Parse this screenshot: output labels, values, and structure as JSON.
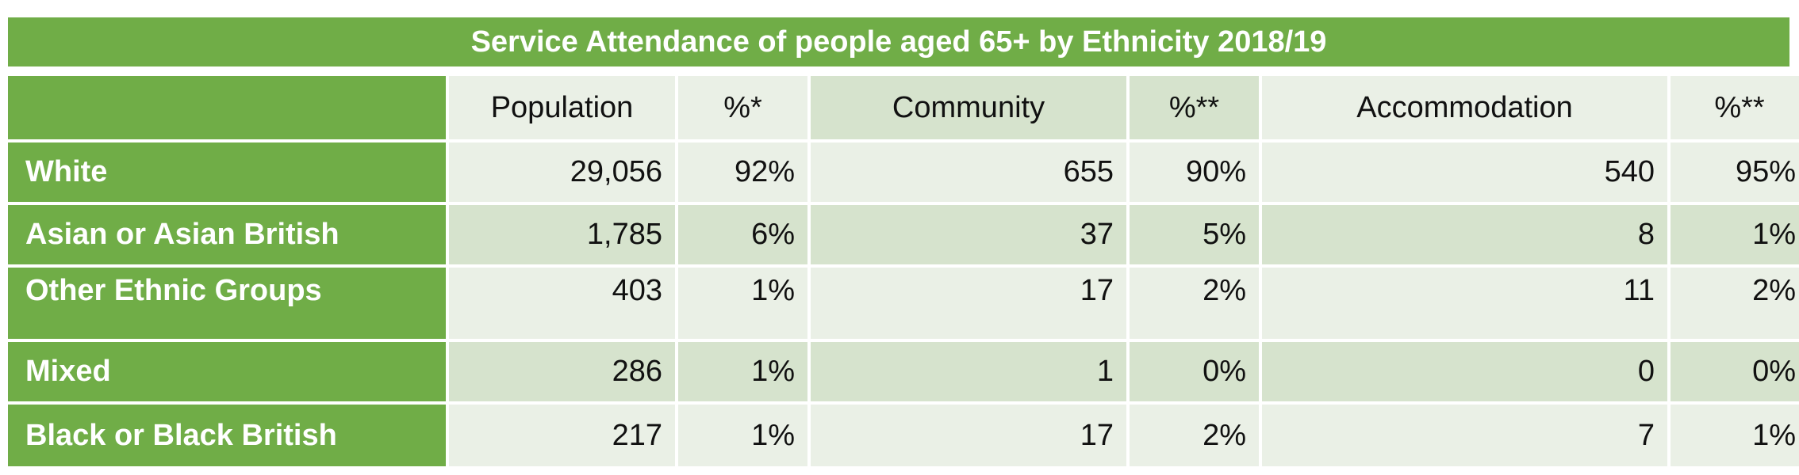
{
  "chart_data": {
    "type": "table",
    "title": "Service Attendance of people aged 65+ by Ethnicity 2018/19",
    "columns": [
      "Population",
      "%*",
      "Community",
      "%**",
      "Accommodation",
      "%**"
    ],
    "rows": [
      {
        "label": "White",
        "values": [
          "29,056",
          "92%",
          "655",
          "90%",
          "540",
          "95%"
        ]
      },
      {
        "label": "Asian or Asian British",
        "values": [
          "1,785",
          "6%",
          "37",
          "5%",
          "8",
          "1%"
        ]
      },
      {
        "label": "Other Ethnic Groups",
        "values": [
          "403",
          "1%",
          "17",
          "2%",
          "11",
          "2%"
        ]
      },
      {
        "label": "Mixed",
        "values": [
          "286",
          "1%",
          "1",
          "0%",
          "0",
          "0%"
        ]
      },
      {
        "label": "Black or Black British",
        "values": [
          "217",
          "1%",
          "17",
          "2%",
          "7",
          "1%"
        ]
      }
    ]
  },
  "colors": {
    "header_green": "#70ad47",
    "cell_light": "#eaf0e6",
    "cell_mid": "#d6e3cd",
    "label_text": "#ffffff"
  }
}
